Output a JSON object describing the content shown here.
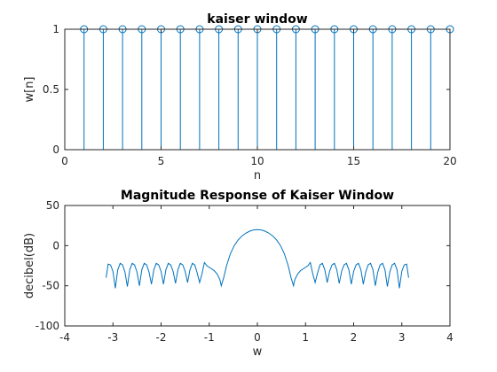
{
  "chart_data": [
    {
      "type": "stem",
      "title": "kaiser window",
      "xlabel": "n",
      "ylabel": "w[n]",
      "xlim": [
        0,
        20
      ],
      "ylim": [
        0,
        1
      ],
      "xticks": [
        0,
        5,
        10,
        15,
        20
      ],
      "yticks": [
        0,
        0.5,
        1
      ],
      "x": [
        1,
        2,
        3,
        4,
        5,
        6,
        7,
        8,
        9,
        10,
        11,
        12,
        13,
        14,
        15,
        16,
        17,
        18,
        19,
        20
      ],
      "y": [
        1,
        1,
        1,
        1,
        1,
        1,
        1,
        1,
        1,
        1,
        1,
        1,
        1,
        1,
        1,
        1,
        1,
        1,
        1,
        1
      ],
      "color": "#0072bd",
      "grid": false
    },
    {
      "type": "line",
      "title": "Magnitude Response of Kaiser Window",
      "xlabel": "w",
      "ylabel": "decibel(dB)",
      "xlim": [
        -4,
        4
      ],
      "ylim": [
        -100,
        50
      ],
      "xticks": [
        -4,
        -3,
        -2,
        -1,
        0,
        1,
        2,
        3,
        4
      ],
      "yticks": [
        -100,
        -50,
        0,
        50
      ],
      "x": [
        0.0,
        0.08,
        0.16,
        0.24,
        0.32,
        0.4,
        0.48,
        0.56,
        0.64,
        0.7,
        0.75,
        0.78,
        0.84,
        0.9,
        0.95,
        1.05,
        1.1,
        1.15,
        1.2,
        1.25,
        1.3,
        1.35,
        1.4,
        1.45,
        1.5,
        1.55,
        1.6,
        1.65,
        1.7,
        1.75,
        1.8,
        1.85,
        1.9,
        1.95,
        2.0,
        2.05,
        2.1,
        2.15,
        2.2,
        2.25,
        2.3,
        2.35,
        2.4,
        2.45,
        2.5,
        2.55,
        2.6,
        2.65,
        2.7,
        2.75,
        2.8,
        2.85,
        2.9,
        2.95,
        3.0,
        3.05,
        3.1,
        3.14159
      ],
      "y": [
        20.0,
        19.5,
        18.0,
        15.5,
        12.0,
        7.0,
        0.0,
        -10.0,
        -25.0,
        -40.0,
        -50.0,
        -42.0,
        -35.0,
        -31.0,
        -29.0,
        -25.0,
        -21.0,
        -35.0,
        -46.0,
        -34.0,
        -24.0,
        -22.0,
        -30.0,
        -46.0,
        -32.0,
        -24.0,
        -22.0,
        -30.0,
        -47.0,
        -32.0,
        -24.0,
        -22.0,
        -30.0,
        -48.0,
        -32.0,
        -24.0,
        -22.0,
        -30.0,
        -48.0,
        -33.0,
        -24.0,
        -22.0,
        -30.0,
        -50.0,
        -33.0,
        -24.0,
        -22.0,
        -30.0,
        -51.0,
        -33.0,
        -24.0,
        -22.0,
        -30.0,
        -53.0,
        -32.0,
        -24.0,
        -23.0,
        -40.0
      ],
      "mirror_about_zero": true,
      "color": "#0072bd",
      "grid": false
    }
  ]
}
